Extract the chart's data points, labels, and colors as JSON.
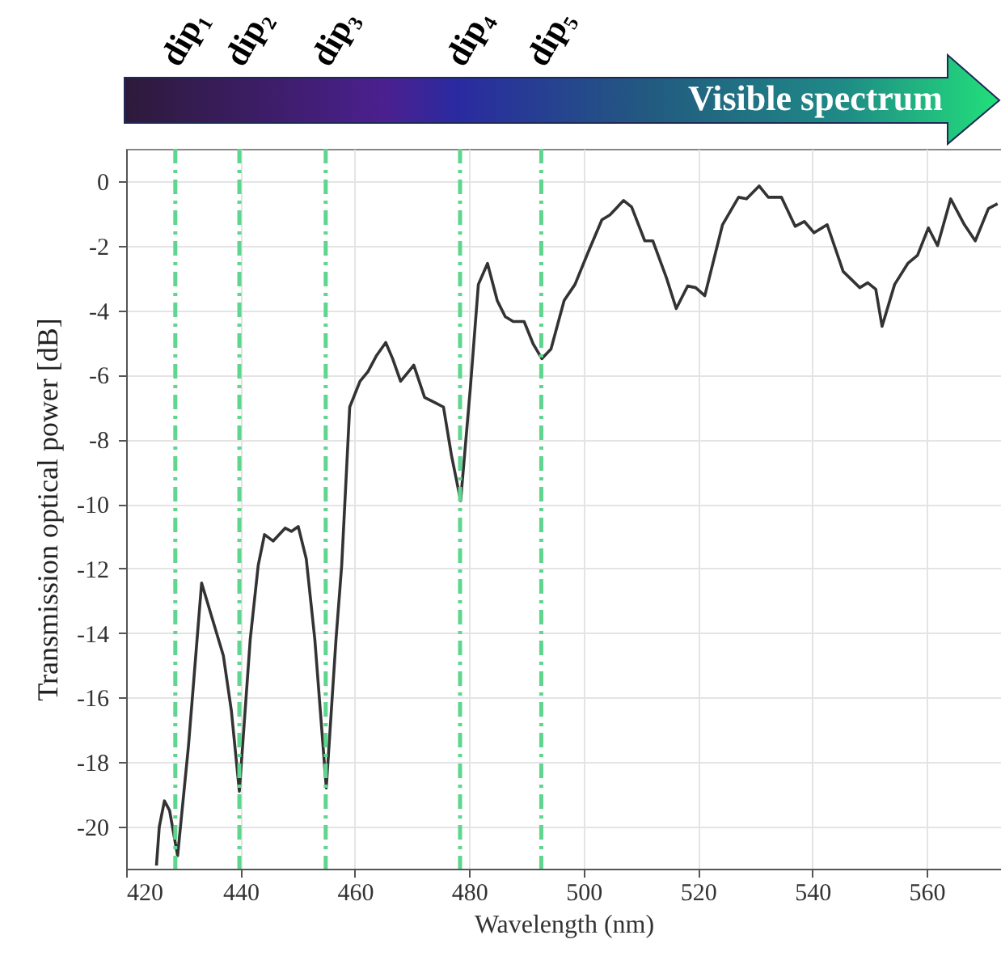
{
  "chart_data": {
    "type": "line",
    "xlabel": "Wavelength (nm)",
    "ylabel": "Transmission optical power [dB]",
    "annotations": [
      "Visible spectrum"
    ],
    "xlim": [
      420,
      573
    ],
    "ylim": [
      -21.3,
      1
    ],
    "xticks": [
      420,
      440,
      460,
      480,
      500,
      520,
      540,
      560
    ],
    "yticks": [
      0,
      -2,
      -4,
      -6,
      -8,
      -10,
      -12,
      -14,
      -16,
      -18,
      -20
    ],
    "grid": true,
    "line_style": "solid",
    "ref_lines": [
      {
        "axis": "x",
        "value": 428.6,
        "label": "dip₁",
        "color": "#5ed68e",
        "line_style": "dashdot"
      },
      {
        "axis": "x",
        "value": 439.8,
        "label": "dip₂",
        "color": "#5ed68e",
        "line_style": "dashdot"
      },
      {
        "axis": "x",
        "value": 454.9,
        "label": "dip₃",
        "color": "#5ed68e",
        "line_style": "dashdot"
      },
      {
        "axis": "x",
        "value": 478.4,
        "label": "dip₄",
        "color": "#5ed68e",
        "line_style": "dashdot"
      },
      {
        "axis": "x",
        "value": 492.6,
        "label": "dip₅",
        "color": "#5ed68e",
        "line_style": "dashdot"
      }
    ],
    "series": [
      {
        "color": "#333333",
        "x": [
          425.3,
          425.8,
          426.7,
          427.6,
          429.0,
          430.9,
          433.2,
          437.0,
          438.4,
          439.8,
          441.7,
          443.1,
          444.2,
          445.7,
          447.8,
          448.9,
          450.1,
          451.5,
          453.0,
          455.0,
          456.7,
          457.7,
          459.1,
          460.9,
          462.3,
          463.8,
          465.4,
          466.6,
          468.0,
          469.4,
          470.3,
          472.2,
          473.9,
          475.5,
          476.9,
          478.5,
          480.2,
          481.6,
          483.2,
          484.9,
          486.3,
          487.7,
          489.6,
          491.2,
          492.7,
          494.3,
          496.6,
          498.5,
          500.8,
          503.2,
          504.6,
          507.0,
          508.4,
          510.7,
          512.1,
          514.5,
          516.2,
          518.2,
          519.6,
          521.2,
          524.3,
          527.1,
          528.5,
          530.7,
          532.3,
          534.6,
          537.0,
          538.6,
          540.3,
          542.6,
          545.4,
          548.3,
          549.7,
          551.1,
          552.2,
          554.4,
          556.7,
          558.4,
          560.3,
          561.9,
          564.2,
          566.6,
          568.5,
          570.8,
          572.4
        ],
        "values": [
          -21.2,
          -20.0,
          -19.2,
          -19.5,
          -20.9,
          -17.5,
          -12.45,
          -14.7,
          -16.4,
          -18.9,
          -14.2,
          -11.9,
          -10.95,
          -11.15,
          -10.75,
          -10.85,
          -10.7,
          -11.7,
          -14.2,
          -18.8,
          -14.2,
          -11.9,
          -7.0,
          -6.2,
          -5.9,
          -5.4,
          -5.0,
          -5.5,
          -6.2,
          -5.9,
          -5.7,
          -6.7,
          -6.85,
          -7.0,
          -8.5,
          -9.9,
          -6.4,
          -3.2,
          -2.55,
          -3.7,
          -4.2,
          -4.35,
          -4.35,
          -5.05,
          -5.5,
          -5.2,
          -3.7,
          -3.2,
          -2.2,
          -1.2,
          -1.05,
          -0.6,
          -0.8,
          -1.85,
          -1.85,
          -3.0,
          -3.95,
          -3.25,
          -3.3,
          -3.55,
          -1.35,
          -0.5,
          -0.55,
          -0.15,
          -0.5,
          -0.5,
          -1.4,
          -1.25,
          -1.6,
          -1.35,
          -2.8,
          -3.3,
          -3.15,
          -3.35,
          -4.5,
          -3.2,
          -2.55,
          -2.3,
          -1.45,
          -2.0,
          -0.55,
          -1.35,
          -1.85,
          -0.85,
          -0.7
        ]
      }
    ]
  }
}
